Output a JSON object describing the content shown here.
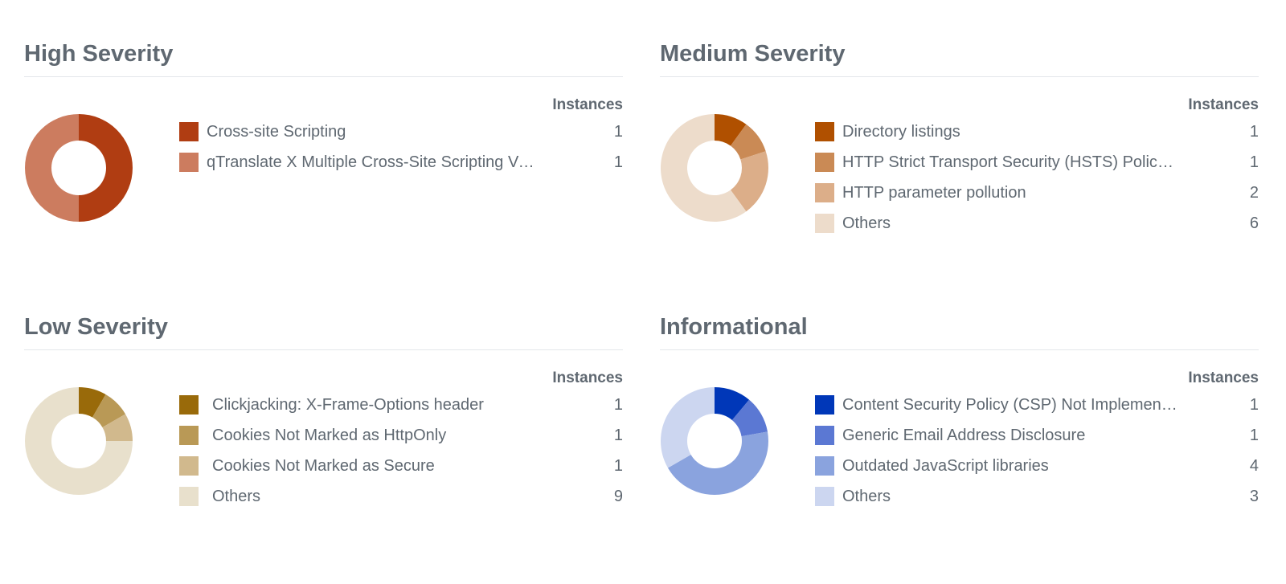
{
  "chart_data": [
    {
      "type": "pie",
      "title": "High Severity",
      "value_header": "Instances",
      "slices": [
        {
          "label": "Cross-site Scripting",
          "value": 1,
          "color": "#b03d12"
        },
        {
          "label": "qTranslate X Multiple Cross-Site Scripting Vul…",
          "value": 1,
          "color": "#cc7c5f"
        }
      ]
    },
    {
      "type": "pie",
      "title": "Medium Severity",
      "value_header": "Instances",
      "slices": [
        {
          "label": "Directory listings",
          "value": 1,
          "color": "#b05000"
        },
        {
          "label": "HTTP Strict Transport Security (HSTS) Policy …",
          "value": 1,
          "color": "#ca8a55"
        },
        {
          "label": "HTTP parameter pollution",
          "value": 2,
          "color": "#dcae89"
        },
        {
          "label": "Others",
          "value": 6,
          "color": "#eddccb"
        }
      ]
    },
    {
      "type": "pie",
      "title": "Low Severity",
      "value_header": "Instances",
      "slices": [
        {
          "label": "Clickjacking: X-Frame-Options header",
          "value": 1,
          "color": "#996a0a"
        },
        {
          "label": "Cookies Not Marked as HttpOnly",
          "value": 1,
          "color": "#b99956"
        },
        {
          "label": "Cookies Not Marked as Secure",
          "value": 1,
          "color": "#d1b98d"
        },
        {
          "label": "Others",
          "value": 9,
          "color": "#e8e0cc"
        }
      ]
    },
    {
      "type": "pie",
      "title": "Informational",
      "value_header": "Instances",
      "slices": [
        {
          "label": "Content Security Policy (CSP) Not Implemen…",
          "value": 1,
          "color": "#0037b8"
        },
        {
          "label": "Generic Email Address Disclosure",
          "value": 1,
          "color": "#5b78d3"
        },
        {
          "label": "Outdated JavaScript libraries",
          "value": 4,
          "color": "#8aa3de"
        },
        {
          "label": "Others",
          "value": 3,
          "color": "#ccd6f0"
        }
      ]
    }
  ]
}
